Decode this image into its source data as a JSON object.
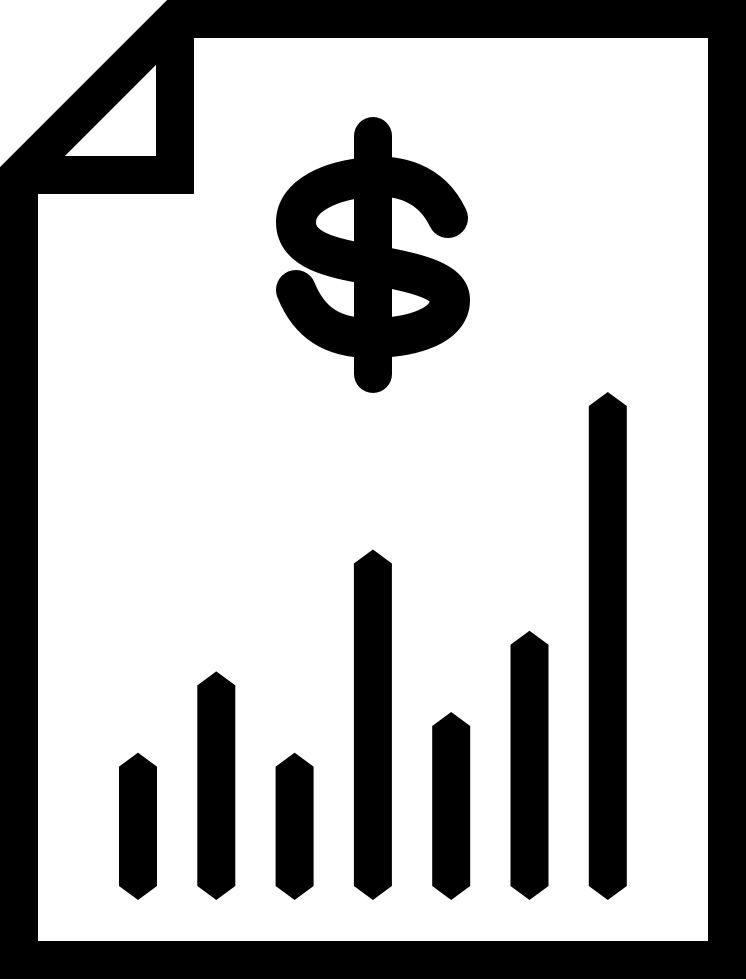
{
  "icon": {
    "name": "financial-report-document-icon",
    "components": [
      "document-outline-icon",
      "folded-corner-icon",
      "dollar-sign-icon",
      "bar-chart-icon"
    ],
    "stroke_color": "#000000",
    "fill_color": "#ffffff",
    "bar_relative_heights": [
      0.29,
      0.45,
      0.29,
      0.69,
      0.37,
      0.53,
      1.0
    ]
  }
}
